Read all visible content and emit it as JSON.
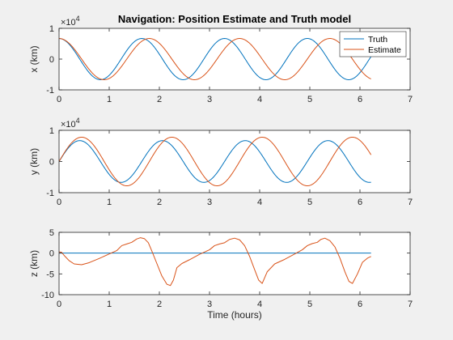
{
  "chart_data": [
    {
      "type": "line",
      "title": "Navigation: Position Estimate and Truth model",
      "xlabel": "",
      "ylabel": "x (km)",
      "xlim": [
        0,
        7
      ],
      "ylim": [
        -1,
        1
      ],
      "y_exponent_label": "×10",
      "y_exponent": "4",
      "xticks": [
        "0",
        "1",
        "2",
        "3",
        "4",
        "5",
        "6",
        "7"
      ],
      "yticks": [
        "-1",
        "0",
        "1"
      ],
      "y_tick_values": [
        -1,
        0,
        1
      ],
      "x_tick_values": [
        0,
        1,
        2,
        3,
        4,
        5,
        6,
        7
      ],
      "legend": {
        "placement": "top-right",
        "entries": [
          "Truth",
          "Estimate"
        ]
      },
      "series": [
        {
          "name": "Truth",
          "color": "#0072BD",
          "model": {
            "kind": "sine",
            "amp": 0.67,
            "period": 1.65,
            "phase": 1.5708,
            "offset": 0
          }
        },
        {
          "name": "Estimate",
          "color": "#D95319",
          "model": {
            "kind": "sine",
            "amp": 0.67,
            "period": 1.8,
            "phase": 1.5708,
            "offset": 0
          }
        }
      ],
      "x_end": 6.22
    },
    {
      "type": "line",
      "title": "",
      "xlabel": "",
      "ylabel": "y (km)",
      "xlim": [
        0,
        7
      ],
      "ylim": [
        -1,
        1
      ],
      "y_exponent_label": "×10",
      "y_exponent": "4",
      "xticks": [
        "0",
        "1",
        "2",
        "3",
        "4",
        "5",
        "6",
        "7"
      ],
      "yticks": [
        "-1",
        "0",
        "1"
      ],
      "y_tick_values": [
        -1,
        0,
        1
      ],
      "x_tick_values": [
        0,
        1,
        2,
        3,
        4,
        5,
        6,
        7
      ],
      "series": [
        {
          "name": "Truth",
          "color": "#0072BD",
          "model": {
            "kind": "sine",
            "amp": 0.67,
            "period": 1.65,
            "phase": 0,
            "offset": 0
          }
        },
        {
          "name": "Estimate",
          "color": "#D95319",
          "model": {
            "kind": "sine",
            "amp": 0.78,
            "period": 1.8,
            "phase": 0,
            "offset": 0
          }
        }
      ],
      "x_end": 6.22
    },
    {
      "type": "line",
      "title": "",
      "xlabel": "Time (hours)",
      "ylabel": "z (km)",
      "xlim": [
        0,
        7
      ],
      "ylim": [
        -10,
        5
      ],
      "xticks": [
        "0",
        "1",
        "2",
        "3",
        "4",
        "5",
        "6",
        "7"
      ],
      "yticks": [
        "-10",
        "-5",
        "0",
        "5"
      ],
      "y_tick_values": [
        -10,
        -5,
        0,
        5
      ],
      "x_tick_values": [
        0,
        1,
        2,
        3,
        4,
        5,
        6,
        7
      ],
      "series": [
        {
          "name": "Truth",
          "color": "#0072BD",
          "x": [
            0,
            6.22
          ],
          "y": [
            0,
            0
          ]
        },
        {
          "name": "Estimate",
          "color": "#D95319",
          "x": [
            0,
            0.05,
            0.12,
            0.2,
            0.3,
            0.45,
            0.6,
            0.8,
            1.0,
            1.15,
            1.25,
            1.35,
            1.45,
            1.55,
            1.62,
            1.7,
            1.78,
            1.85,
            1.95,
            2.05,
            2.15,
            2.22,
            2.28,
            2.35,
            2.45,
            2.6,
            2.8,
            3.0,
            3.1,
            3.2,
            3.3,
            3.4,
            3.5,
            3.6,
            3.7,
            3.8,
            3.9,
            3.98,
            4.05,
            4.15,
            4.3,
            4.5,
            4.7,
            4.85,
            4.95,
            5.05,
            5.15,
            5.22,
            5.3,
            5.4,
            5.5,
            5.6,
            5.7,
            5.78,
            5.85,
            5.95,
            6.05,
            6.15,
            6.22
          ],
          "y": [
            0.3,
            0.2,
            -0.8,
            -1.8,
            -2.6,
            -2.8,
            -2.3,
            -1.3,
            -0.2,
            0.6,
            1.8,
            2.2,
            2.6,
            3.4,
            3.7,
            3.5,
            2.5,
            0.5,
            -2.5,
            -5.5,
            -7.5,
            -7.8,
            -6.5,
            -3.5,
            -2.5,
            -1.6,
            -0.3,
            0.8,
            1.8,
            2.2,
            2.5,
            3.3,
            3.6,
            3.2,
            1.8,
            -0.8,
            -4.0,
            -6.5,
            -7.3,
            -4.5,
            -2.6,
            -1.5,
            -0.2,
            0.8,
            1.8,
            2.3,
            2.6,
            3.3,
            3.6,
            3.0,
            1.5,
            -1.2,
            -4.5,
            -6.8,
            -7.3,
            -5.0,
            -2.2,
            -1.2,
            -0.8
          ]
        }
      ],
      "x_end": 6.22
    }
  ]
}
